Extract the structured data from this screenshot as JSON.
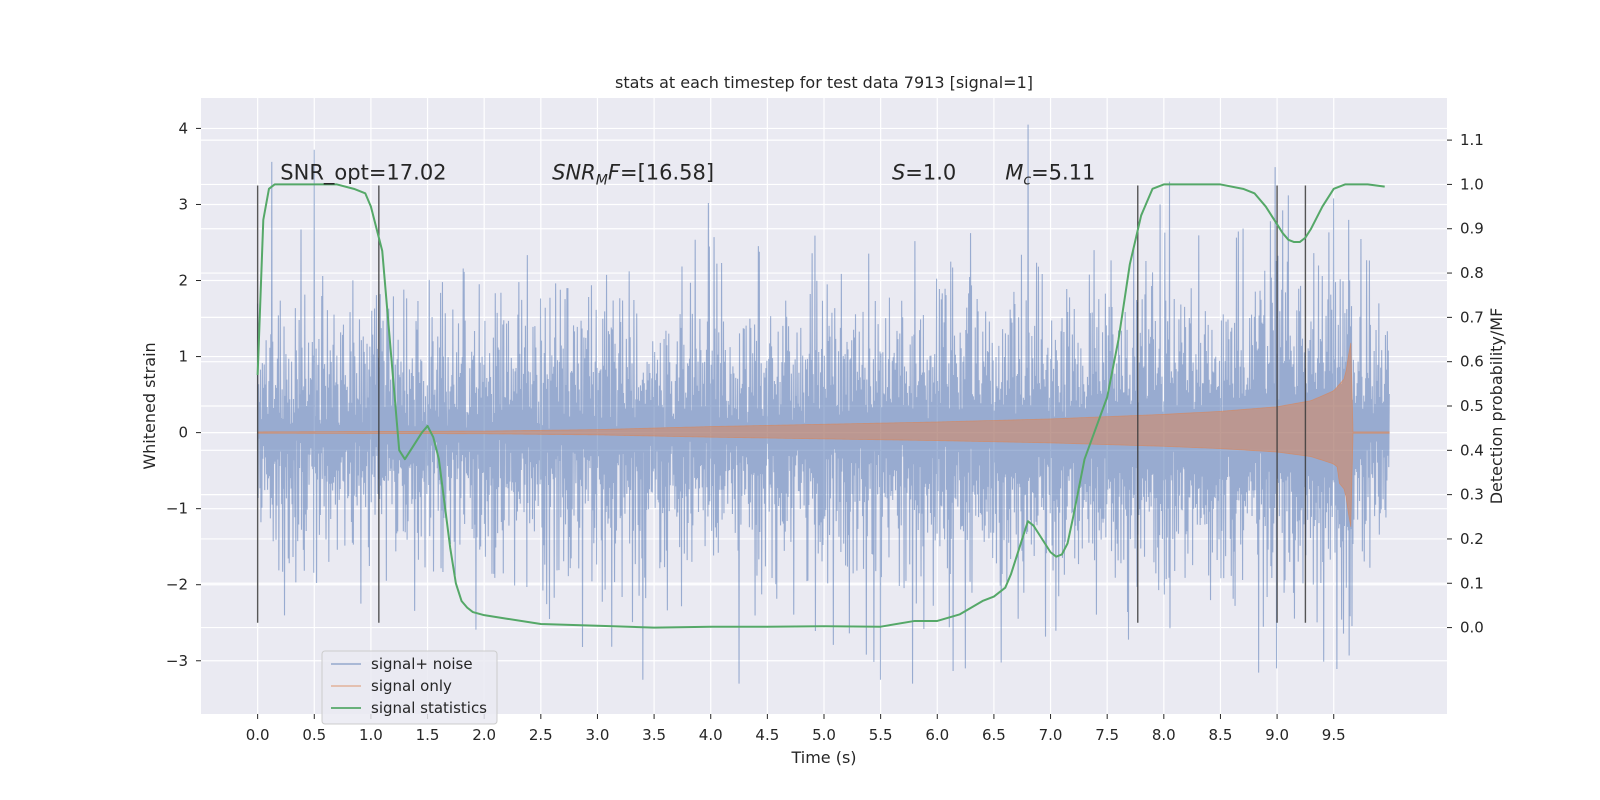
{
  "chart_data": {
    "type": "line",
    "title": "stats at each timestep for test data 7913 [signal=1]",
    "xlabel": "Time (s)",
    "ylabel": "Whitened strain",
    "y2label": "Detection probability/MF",
    "xlim": [
      -0.5,
      10.5
    ],
    "ylim": [
      -3.7,
      4.4
    ],
    "y2lim": [
      -0.195,
      1.195
    ],
    "xticks": [
      "0.0",
      "0.5",
      "1.0",
      "1.5",
      "2.0",
      "2.5",
      "3.0",
      "3.5",
      "4.0",
      "4.5",
      "5.0",
      "5.5",
      "6.0",
      "6.5",
      "7.0",
      "7.5",
      "8.0",
      "8.5",
      "9.0",
      "9.5"
    ],
    "yticks": [
      "−3",
      "−2",
      "−1",
      "0",
      "1",
      "2",
      "3",
      "4"
    ],
    "y2ticks": [
      "0.0",
      "0.1",
      "0.2",
      "0.3",
      "0.4",
      "0.5",
      "0.6",
      "0.7",
      "0.8",
      "0.9",
      "1.0",
      "1.1"
    ],
    "grid": true,
    "legend_position": "lower-left",
    "annotations": [
      {
        "text": "SNR_opt=17.02",
        "x": 0.2,
        "y": 3.33
      },
      {
        "text": "SNRMF=[16.58]",
        "x": 2.6,
        "y": 3.33
      },
      {
        "text": "S=1.0",
        "x": 5.6,
        "y": 3.33
      },
      {
        "text": "Mc=5.11",
        "x": 6.6,
        "y": 3.33
      }
    ],
    "vertical_lines": [
      0.0,
      1.07,
      7.77,
      9.0,
      9.25
    ],
    "vline_range": [
      -2.5,
      3.25
    ],
    "series": [
      {
        "name": "signal+ noise",
        "color": "#4c72b0",
        "noise_envelope": {
          "x": [
            0.0,
            9.99
          ],
          "typical_amplitude": 1.5,
          "max_peak": 4.05,
          "min_peak": -3.3
        },
        "notable_peaks": [
          [
            0.13,
            3.56
          ],
          [
            0.5,
            3.72
          ],
          [
            3.98,
            3.02
          ],
          [
            6.8,
            4.05
          ],
          [
            8.05,
            3.3
          ],
          [
            9.1,
            3.12
          ],
          [
            9.5,
            3.08
          ],
          [
            3.4,
            -3.25
          ],
          [
            4.25,
            -3.3
          ],
          [
            5.5,
            -3.25
          ],
          [
            6.25,
            -3.1
          ],
          [
            9.0,
            -3.1
          ]
        ]
      },
      {
        "name": "signal only",
        "color": "#dd8452",
        "envelope": {
          "x": [
            0.0,
            2.0,
            3.0,
            4.0,
            5.0,
            6.0,
            7.0,
            7.5,
            8.0,
            8.5,
            9.0,
            9.3,
            9.5,
            9.6,
            9.65,
            9.67,
            9.99
          ],
          "amplitude": [
            0.01,
            0.02,
            0.04,
            0.08,
            0.11,
            0.14,
            0.18,
            0.21,
            0.24,
            0.28,
            0.34,
            0.42,
            0.55,
            0.72,
            1.2,
            0.01,
            0.01
          ]
        }
      },
      {
        "name": "signal statistics",
        "color": "#55a868",
        "axis": "right",
        "x": [
          0.0,
          0.05,
          0.1,
          0.15,
          0.2,
          0.3,
          0.5,
          0.7,
          0.85,
          0.95,
          1.0,
          1.05,
          1.1,
          1.15,
          1.2,
          1.25,
          1.3,
          1.35,
          1.4,
          1.45,
          1.5,
          1.55,
          1.6,
          1.65,
          1.7,
          1.75,
          1.8,
          1.85,
          1.9,
          2.0,
          2.2,
          2.5,
          3.0,
          3.5,
          4.0,
          4.5,
          5.0,
          5.5,
          5.8,
          6.0,
          6.2,
          6.4,
          6.5,
          6.6,
          6.65,
          6.7,
          6.75,
          6.8,
          6.85,
          6.9,
          7.0,
          7.05,
          7.1,
          7.15,
          7.2,
          7.3,
          7.4,
          7.5,
          7.6,
          7.7,
          7.8,
          7.85,
          7.9,
          8.0,
          8.2,
          8.5,
          8.7,
          8.8,
          8.9,
          9.0,
          9.05,
          9.1,
          9.15,
          9.2,
          9.25,
          9.3,
          9.4,
          9.5,
          9.6,
          9.8,
          9.95
        ],
        "values": [
          0.57,
          0.92,
          0.99,
          1.0,
          1.0,
          1.0,
          1.0,
          1.0,
          0.99,
          0.98,
          0.95,
          0.9,
          0.85,
          0.7,
          0.55,
          0.4,
          0.38,
          0.4,
          0.42,
          0.44,
          0.455,
          0.43,
          0.38,
          0.28,
          0.18,
          0.1,
          0.06,
          0.045,
          0.035,
          0.028,
          0.02,
          0.008,
          0.004,
          0.0,
          0.002,
          0.002,
          0.003,
          0.002,
          0.015,
          0.015,
          0.03,
          0.06,
          0.07,
          0.09,
          0.12,
          0.16,
          0.2,
          0.24,
          0.23,
          0.21,
          0.17,
          0.16,
          0.165,
          0.19,
          0.25,
          0.38,
          0.45,
          0.52,
          0.65,
          0.82,
          0.93,
          0.96,
          0.99,
          1.0,
          1.0,
          1.0,
          0.99,
          0.98,
          0.95,
          0.91,
          0.89,
          0.875,
          0.87,
          0.87,
          0.88,
          0.9,
          0.95,
          0.99,
          1.0,
          1.0,
          0.995
        ]
      }
    ]
  }
}
